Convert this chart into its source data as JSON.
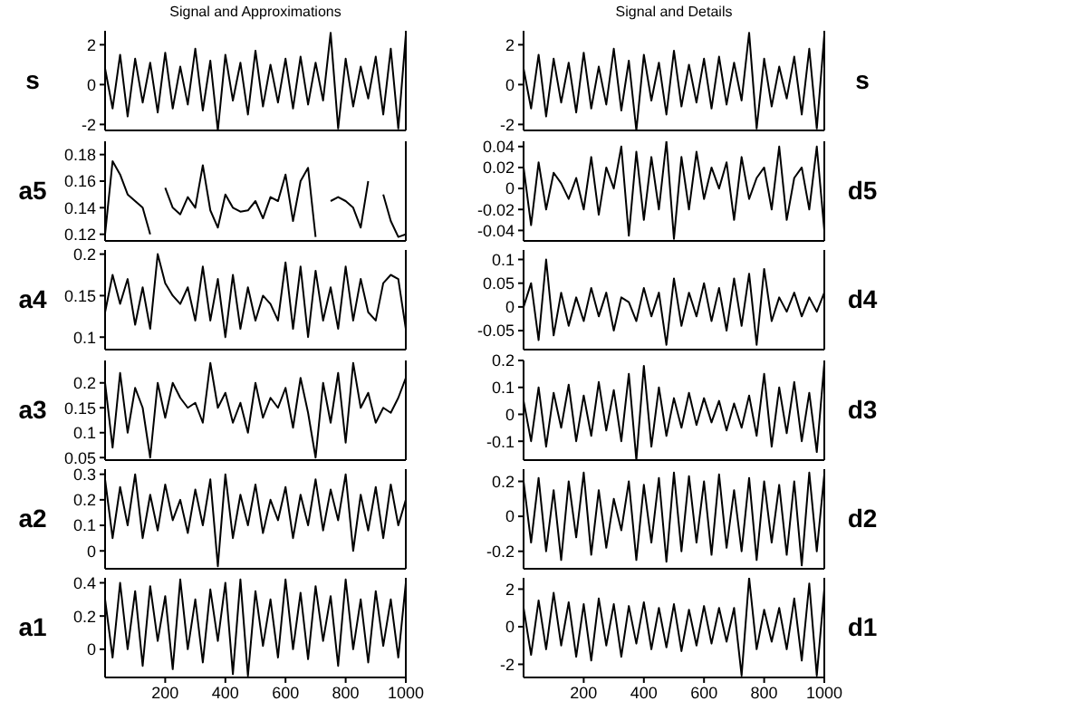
{
  "chart_data": [
    {
      "type": "line",
      "title": "Signal and Approximations",
      "ylabel": "s",
      "color": "#000000",
      "xlim": [
        0,
        1000
      ],
      "ylim": [
        -2.3,
        2.7
      ],
      "yticks": [
        -2,
        0,
        2
      ],
      "tick_labels": "y",
      "x": [
        0,
        25,
        50,
        75,
        100,
        125,
        150,
        175,
        200,
        225,
        250,
        275,
        300,
        325,
        350,
        375,
        400,
        425,
        450,
        475,
        500,
        525,
        550,
        575,
        600,
        625,
        650,
        675,
        700,
        725,
        750,
        775,
        800,
        825,
        850,
        875,
        900,
        925,
        950,
        975,
        1000
      ],
      "values": [
        0.8,
        -1.2,
        1.5,
        -1.6,
        1.3,
        -0.9,
        1.1,
        -1.4,
        1.6,
        -1.2,
        0.9,
        -1.0,
        1.8,
        -1.3,
        1.2,
        -2.3,
        1.5,
        -0.8,
        1.1,
        -1.5,
        1.7,
        -1.1,
        1.0,
        -0.9,
        1.3,
        -1.2,
        1.4,
        -1.0,
        1.1,
        -0.8,
        2.6,
        -2.2,
        1.3,
        -1.1,
        0.9,
        -0.7,
        1.4,
        -1.5,
        1.8,
        -2.2,
        2.5
      ]
    },
    {
      "type": "line",
      "title": "Signal and Details",
      "ylabel": "s",
      "color": "#000000",
      "xlim": [
        0,
        1000
      ],
      "ylim": [
        -2.3,
        2.7
      ],
      "yticks": [
        -2,
        0,
        2
      ],
      "tick_labels": "y",
      "x": [
        0,
        25,
        50,
        75,
        100,
        125,
        150,
        175,
        200,
        225,
        250,
        275,
        300,
        325,
        350,
        375,
        400,
        425,
        450,
        475,
        500,
        525,
        550,
        575,
        600,
        625,
        650,
        675,
        700,
        725,
        750,
        775,
        800,
        825,
        850,
        875,
        900,
        925,
        950,
        975,
        1000
      ],
      "values": [
        0.8,
        -1.2,
        1.5,
        -1.6,
        1.3,
        -0.9,
        1.1,
        -1.4,
        1.6,
        -1.2,
        0.9,
        -1.0,
        1.8,
        -1.3,
        1.2,
        -2.3,
        1.5,
        -0.8,
        1.1,
        -1.5,
        1.7,
        -1.1,
        1.0,
        -0.9,
        1.3,
        -1.2,
        1.4,
        -1.0,
        1.1,
        -0.8,
        2.6,
        -2.2,
        1.3,
        -1.1,
        0.9,
        -0.7,
        1.4,
        -1.5,
        1.8,
        -2.2,
        2.5
      ]
    },
    {
      "type": "line",
      "ylabel": "a5",
      "color": "#000000",
      "xlim": [
        0,
        1000
      ],
      "ylim": [
        0.115,
        0.19
      ],
      "yticks": [
        0.12,
        0.14,
        0.16,
        0.18
      ],
      "tick_labels": "y",
      "x": [
        0,
        25,
        50,
        75,
        100,
        125,
        150,
        175,
        200,
        225,
        250,
        275,
        300,
        325,
        350,
        375,
        400,
        425,
        450,
        475,
        500,
        525,
        550,
        575,
        600,
        625,
        650,
        675,
        700,
        725,
        750,
        775,
        800,
        825,
        850,
        875,
        900,
        925,
        950,
        975,
        1000
      ],
      "values": [
        0.12,
        0.175,
        0.165,
        0.15,
        0.145,
        0.14,
        0.12,
        null,
        0.155,
        0.14,
        0.135,
        0.148,
        0.14,
        0.172,
        0.138,
        0.125,
        0.15,
        0.14,
        0.137,
        0.138,
        0.145,
        0.132,
        0.148,
        0.145,
        0.165,
        0.13,
        0.16,
        0.17,
        0.118,
        null,
        0.145,
        0.148,
        0.145,
        0.14,
        0.125,
        0.16,
        null,
        0.15,
        0.13,
        0.118,
        0.12
      ]
    },
    {
      "type": "line",
      "ylabel": "d5",
      "color": "#000000",
      "xlim": [
        0,
        1000
      ],
      "ylim": [
        -0.05,
        0.045
      ],
      "yticks": [
        -0.04,
        -0.02,
        0,
        0.02,
        0.04
      ],
      "tick_labels": "y",
      "x": [
        0,
        25,
        50,
        75,
        100,
        125,
        150,
        175,
        200,
        225,
        250,
        275,
        300,
        325,
        350,
        375,
        400,
        425,
        450,
        475,
        500,
        525,
        550,
        575,
        600,
        625,
        650,
        675,
        700,
        725,
        750,
        775,
        800,
        825,
        850,
        875,
        900,
        925,
        950,
        975,
        1000
      ],
      "values": [
        0.02,
        -0.035,
        0.025,
        -0.02,
        0.015,
        0.005,
        -0.01,
        0.01,
        -0.02,
        0.03,
        -0.025,
        0.02,
        0.0,
        0.04,
        -0.045,
        0.035,
        -0.03,
        0.03,
        -0.02,
        0.045,
        -0.048,
        0.03,
        -0.02,
        0.035,
        -0.01,
        0.02,
        0.0,
        0.025,
        -0.03,
        0.03,
        -0.01,
        0.01,
        0.02,
        -0.02,
        0.04,
        -0.03,
        0.01,
        0.02,
        -0.02,
        0.04,
        -0.04
      ]
    },
    {
      "type": "line",
      "ylabel": "a4",
      "color": "#000000",
      "xlim": [
        0,
        1000
      ],
      "ylim": [
        0.085,
        0.205
      ],
      "yticks": [
        0.1,
        0.15,
        0.2
      ],
      "tick_labels": "y",
      "x": [
        0,
        25,
        50,
        75,
        100,
        125,
        150,
        175,
        200,
        225,
        250,
        275,
        300,
        325,
        350,
        375,
        400,
        425,
        450,
        475,
        500,
        525,
        550,
        575,
        600,
        625,
        650,
        675,
        700,
        725,
        750,
        775,
        800,
        825,
        850,
        875,
        900,
        925,
        950,
        975,
        1000
      ],
      "values": [
        0.13,
        0.175,
        0.14,
        0.17,
        0.115,
        0.16,
        0.11,
        0.2,
        0.165,
        0.15,
        0.14,
        0.16,
        0.12,
        0.185,
        0.12,
        0.17,
        0.1,
        0.175,
        0.11,
        0.16,
        0.12,
        0.15,
        0.14,
        0.12,
        0.19,
        0.11,
        0.185,
        0.1,
        0.18,
        0.12,
        0.16,
        0.11,
        0.185,
        0.12,
        0.17,
        0.13,
        0.12,
        0.165,
        0.175,
        0.17,
        0.11
      ]
    },
    {
      "type": "line",
      "ylabel": "d4",
      "color": "#000000",
      "xlim": [
        0,
        1000
      ],
      "ylim": [
        -0.09,
        0.12
      ],
      "yticks": [
        -0.05,
        0,
        0.05,
        0.1
      ],
      "tick_labels": "y",
      "x": [
        0,
        25,
        50,
        75,
        100,
        125,
        150,
        175,
        200,
        225,
        250,
        275,
        300,
        325,
        350,
        375,
        400,
        425,
        450,
        475,
        500,
        525,
        550,
        575,
        600,
        625,
        650,
        675,
        700,
        725,
        750,
        775,
        800,
        825,
        850,
        875,
        900,
        925,
        950,
        975,
        1000
      ],
      "values": [
        0.0,
        0.05,
        -0.07,
        0.1,
        -0.06,
        0.03,
        -0.04,
        0.02,
        -0.03,
        0.04,
        -0.02,
        0.03,
        -0.05,
        0.02,
        0.01,
        -0.03,
        0.04,
        -0.02,
        0.03,
        -0.08,
        0.06,
        -0.04,
        0.03,
        -0.02,
        0.05,
        -0.03,
        0.04,
        -0.05,
        0.06,
        -0.04,
        0.07,
        -0.08,
        0.08,
        -0.03,
        0.02,
        -0.01,
        0.03,
        -0.02,
        0.02,
        -0.01,
        0.03
      ]
    },
    {
      "type": "line",
      "ylabel": "a3",
      "color": "#000000",
      "xlim": [
        0,
        1000
      ],
      "ylim": [
        0.045,
        0.245
      ],
      "yticks": [
        0.05,
        0.1,
        0.15,
        0.2
      ],
      "tick_labels": "y",
      "x": [
        0,
        25,
        50,
        75,
        100,
        125,
        150,
        175,
        200,
        225,
        250,
        275,
        300,
        325,
        350,
        375,
        400,
        425,
        450,
        475,
        500,
        525,
        550,
        575,
        600,
        625,
        650,
        675,
        700,
        725,
        750,
        775,
        800,
        825,
        850,
        875,
        900,
        925,
        950,
        975,
        1000
      ],
      "values": [
        0.2,
        0.07,
        0.22,
        0.1,
        0.19,
        0.15,
        0.05,
        0.2,
        0.13,
        0.2,
        0.17,
        0.15,
        0.16,
        0.12,
        0.24,
        0.15,
        0.18,
        0.12,
        0.16,
        0.1,
        0.2,
        0.13,
        0.17,
        0.15,
        0.19,
        0.11,
        0.21,
        0.14,
        0.05,
        0.2,
        0.12,
        0.22,
        0.08,
        0.24,
        0.15,
        0.18,
        0.12,
        0.15,
        0.14,
        0.17,
        0.21
      ]
    },
    {
      "type": "line",
      "ylabel": "d3",
      "color": "#000000",
      "xlim": [
        0,
        1000
      ],
      "ylim": [
        -0.17,
        0.2
      ],
      "yticks": [
        -0.1,
        0,
        0.1,
        0.2
      ],
      "tick_labels": "y",
      "x": [
        0,
        25,
        50,
        75,
        100,
        125,
        150,
        175,
        200,
        225,
        250,
        275,
        300,
        325,
        350,
        375,
        400,
        425,
        450,
        475,
        500,
        525,
        550,
        575,
        600,
        625,
        650,
        675,
        700,
        725,
        750,
        775,
        800,
        825,
        850,
        875,
        900,
        925,
        950,
        975,
        1000
      ],
      "values": [
        0.05,
        -0.1,
        0.1,
        -0.12,
        0.08,
        -0.05,
        0.11,
        -0.1,
        0.07,
        -0.08,
        0.12,
        -0.06,
        0.09,
        -0.1,
        0.15,
        -0.17,
        0.18,
        -0.12,
        0.1,
        -0.08,
        0.06,
        -0.05,
        0.08,
        -0.04,
        0.06,
        -0.03,
        0.05,
        -0.06,
        0.04,
        -0.05,
        0.07,
        -0.08,
        0.15,
        -0.12,
        0.1,
        -0.07,
        0.12,
        -0.1,
        0.08,
        -0.14,
        0.19
      ]
    },
    {
      "type": "line",
      "ylabel": "a2",
      "color": "#000000",
      "xlim": [
        0,
        1000
      ],
      "ylim": [
        -0.07,
        0.32
      ],
      "yticks": [
        0,
        0.1,
        0.2,
        0.3
      ],
      "tick_labels": "y",
      "x": [
        0,
        25,
        50,
        75,
        100,
        125,
        150,
        175,
        200,
        225,
        250,
        275,
        300,
        325,
        350,
        375,
        400,
        425,
        450,
        475,
        500,
        525,
        550,
        575,
        600,
        625,
        650,
        675,
        700,
        725,
        750,
        775,
        800,
        825,
        850,
        875,
        900,
        925,
        950,
        975,
        1000
      ],
      "values": [
        0.28,
        0.05,
        0.25,
        0.1,
        0.3,
        0.05,
        0.22,
        0.08,
        0.26,
        0.12,
        0.2,
        0.07,
        0.24,
        0.1,
        0.28,
        -0.06,
        0.3,
        0.05,
        0.22,
        0.1,
        0.26,
        0.07,
        0.2,
        0.12,
        0.25,
        0.05,
        0.22,
        0.1,
        0.28,
        0.08,
        0.24,
        0.12,
        0.3,
        0.0,
        0.22,
        0.08,
        0.25,
        0.05,
        0.26,
        0.1,
        0.2
      ]
    },
    {
      "type": "line",
      "ylabel": "d2",
      "color": "#000000",
      "xlim": [
        0,
        1000
      ],
      "ylim": [
        -0.3,
        0.27
      ],
      "yticks": [
        -0.2,
        0,
        0.2
      ],
      "tick_labels": "y",
      "x": [
        0,
        25,
        50,
        75,
        100,
        125,
        150,
        175,
        200,
        225,
        250,
        275,
        300,
        325,
        350,
        375,
        400,
        425,
        450,
        475,
        500,
        525,
        550,
        575,
        600,
        625,
        650,
        675,
        700,
        725,
        750,
        775,
        800,
        825,
        850,
        875,
        900,
        925,
        950,
        975,
        1000
      ],
      "values": [
        0.2,
        -0.15,
        0.22,
        -0.2,
        0.15,
        -0.25,
        0.2,
        -0.12,
        0.25,
        -0.22,
        0.15,
        -0.18,
        0.1,
        -0.08,
        0.2,
        -0.25,
        0.18,
        -0.15,
        0.22,
        -0.26,
        0.25,
        -0.2,
        0.23,
        -0.15,
        0.2,
        -0.22,
        0.24,
        -0.18,
        0.15,
        -0.2,
        0.22,
        -0.25,
        0.2,
        -0.15,
        0.18,
        -0.22,
        0.2,
        -0.28,
        0.25,
        -0.2,
        0.24
      ]
    },
    {
      "type": "line",
      "ylabel": "a1",
      "color": "#000000",
      "xlim": [
        0,
        1000
      ],
      "ylim": [
        -0.17,
        0.43
      ],
      "yticks": [
        0,
        0.2,
        0.4
      ],
      "xticks": [
        200,
        400,
        600,
        800,
        1000
      ],
      "x": [
        0,
        25,
        50,
        75,
        100,
        125,
        150,
        175,
        200,
        225,
        250,
        275,
        300,
        325,
        350,
        375,
        400,
        425,
        450,
        475,
        500,
        525,
        550,
        575,
        600,
        625,
        650,
        675,
        700,
        725,
        750,
        775,
        800,
        825,
        850,
        875,
        900,
        925,
        950,
        975,
        1000
      ],
      "values": [
        0.3,
        -0.05,
        0.4,
        0.0,
        0.35,
        -0.1,
        0.38,
        0.05,
        0.32,
        -0.12,
        0.42,
        0.0,
        0.3,
        -0.08,
        0.36,
        0.05,
        0.4,
        -0.15,
        0.42,
        -0.16,
        0.35,
        0.02,
        0.3,
        -0.05,
        0.42,
        0.0,
        0.34,
        -0.06,
        0.38,
        0.05,
        0.32,
        -0.1,
        0.42,
        0.0,
        0.3,
        -0.08,
        0.35,
        0.02,
        0.3,
        -0.05,
        0.4
      ]
    },
    {
      "type": "line",
      "ylabel": "d1",
      "color": "#000000",
      "xlim": [
        0,
        1000
      ],
      "ylim": [
        -2.7,
        2.6
      ],
      "yticks": [
        -2,
        0,
        2
      ],
      "xticks": [
        200,
        400,
        600,
        800,
        1000
      ],
      "x": [
        0,
        25,
        50,
        75,
        100,
        125,
        150,
        175,
        200,
        225,
        250,
        275,
        300,
        325,
        350,
        375,
        400,
        425,
        450,
        475,
        500,
        525,
        550,
        575,
        600,
        625,
        650,
        675,
        700,
        725,
        750,
        775,
        800,
        825,
        850,
        875,
        900,
        925,
        950,
        975,
        1000
      ],
      "values": [
        1.0,
        -1.5,
        1.4,
        -1.2,
        1.8,
        -1.0,
        1.3,
        -1.6,
        1.2,
        -1.8,
        1.5,
        -1.0,
        1.2,
        -1.6,
        1.1,
        -0.9,
        1.3,
        -1.2,
        1.0,
        -1.1,
        1.2,
        -1.3,
        0.9,
        -1.0,
        1.1,
        -0.9,
        1.0,
        -0.8,
        1.0,
        -2.6,
        2.6,
        -1.2,
        0.9,
        -0.8,
        1.0,
        -1.2,
        1.5,
        -1.8,
        2.3,
        -2.6,
        2.0
      ]
    }
  ]
}
